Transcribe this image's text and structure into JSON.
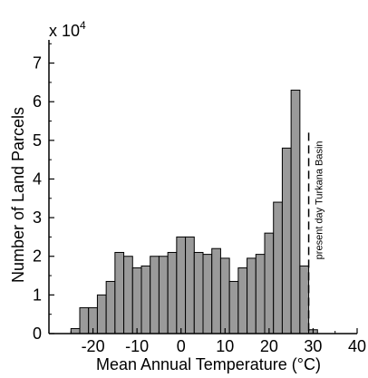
{
  "chart_data": {
    "type": "bar",
    "xlabel": "Mean Annual Temperature (°C)",
    "ylabel": "Number of Land Parcels",
    "y_multiplier_base": "x 10",
    "y_multiplier_exp": "4",
    "xlim": [
      -30,
      40
    ],
    "ylim": [
      0,
      7.6
    ],
    "x_ticks": [
      -20,
      -10,
      0,
      10,
      20,
      30,
      40
    ],
    "y_ticks": [
      0,
      1,
      2,
      3,
      4,
      5,
      6,
      7
    ],
    "grid": false,
    "bin_width": 2,
    "bins": [
      {
        "x0": -25,
        "value": 0.13
      },
      {
        "x0": -23,
        "value": 0.67
      },
      {
        "x0": -21,
        "value": 0.67
      },
      {
        "x0": -19,
        "value": 1.0
      },
      {
        "x0": -17,
        "value": 1.35
      },
      {
        "x0": -15,
        "value": 2.1
      },
      {
        "x0": -13,
        "value": 2.0
      },
      {
        "x0": -11,
        "value": 1.7
      },
      {
        "x0": -9,
        "value": 1.75
      },
      {
        "x0": -7,
        "value": 2.0
      },
      {
        "x0": -5,
        "value": 2.0
      },
      {
        "x0": -3,
        "value": 2.1
      },
      {
        "x0": -1,
        "value": 2.5
      },
      {
        "x0": 1,
        "value": 2.5
      },
      {
        "x0": 3,
        "value": 2.1
      },
      {
        "x0": 5,
        "value": 2.05
      },
      {
        "x0": 7,
        "value": 2.2
      },
      {
        "x0": 9,
        "value": 1.95
      },
      {
        "x0": 11,
        "value": 1.35
      },
      {
        "x0": 13,
        "value": 1.7
      },
      {
        "x0": 15,
        "value": 1.95
      },
      {
        "x0": 17,
        "value": 2.05
      },
      {
        "x0": 19,
        "value": 2.6
      },
      {
        "x0": 21,
        "value": 3.4
      },
      {
        "x0": 23,
        "value": 4.8
      },
      {
        "x0": 25,
        "value": 6.3
      },
      {
        "x0": 27,
        "value": 1.75
      },
      {
        "x0": 29,
        "value": 0.1
      }
    ],
    "reference_line": {
      "x": 29,
      "y_top": 5.2,
      "style": "dashed",
      "label": "present day Turkana Basin"
    },
    "colors": {
      "bar_fill": "#9a9a9a",
      "bar_stroke": "#000000"
    }
  }
}
